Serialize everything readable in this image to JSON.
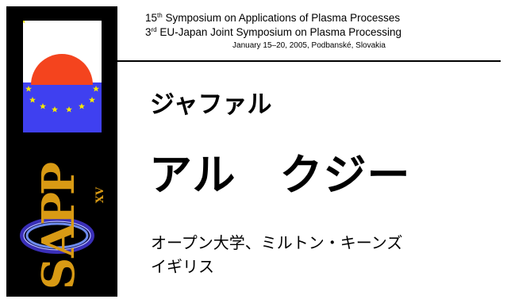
{
  "header": {
    "line1_num": "15",
    "line1_sup": "th",
    "line1_rest": " Symposium on Applications of Plasma Processes",
    "line2_num": "3",
    "line2_sup": "rd",
    "line2_rest": " EU-Japan Joint Symposium on Plasma Processing",
    "line3": "January 15–20, 2005, Podbanské, Slovakia"
  },
  "logo": {
    "letters": [
      "S",
      "A",
      "P",
      "P"
    ],
    "roman_numeral": "XV",
    "letter_color": "#d89a14",
    "flag_red": "#f4441e",
    "flag_blue": "#3f40f0",
    "star_color": "#f5e800"
  },
  "speaker": {
    "first_name": "ジャファル",
    "last_name": "アル　クジー"
  },
  "affiliation": {
    "line1": "オープン大学、ミルトン・キーンズ",
    "line2": "イギリス"
  }
}
